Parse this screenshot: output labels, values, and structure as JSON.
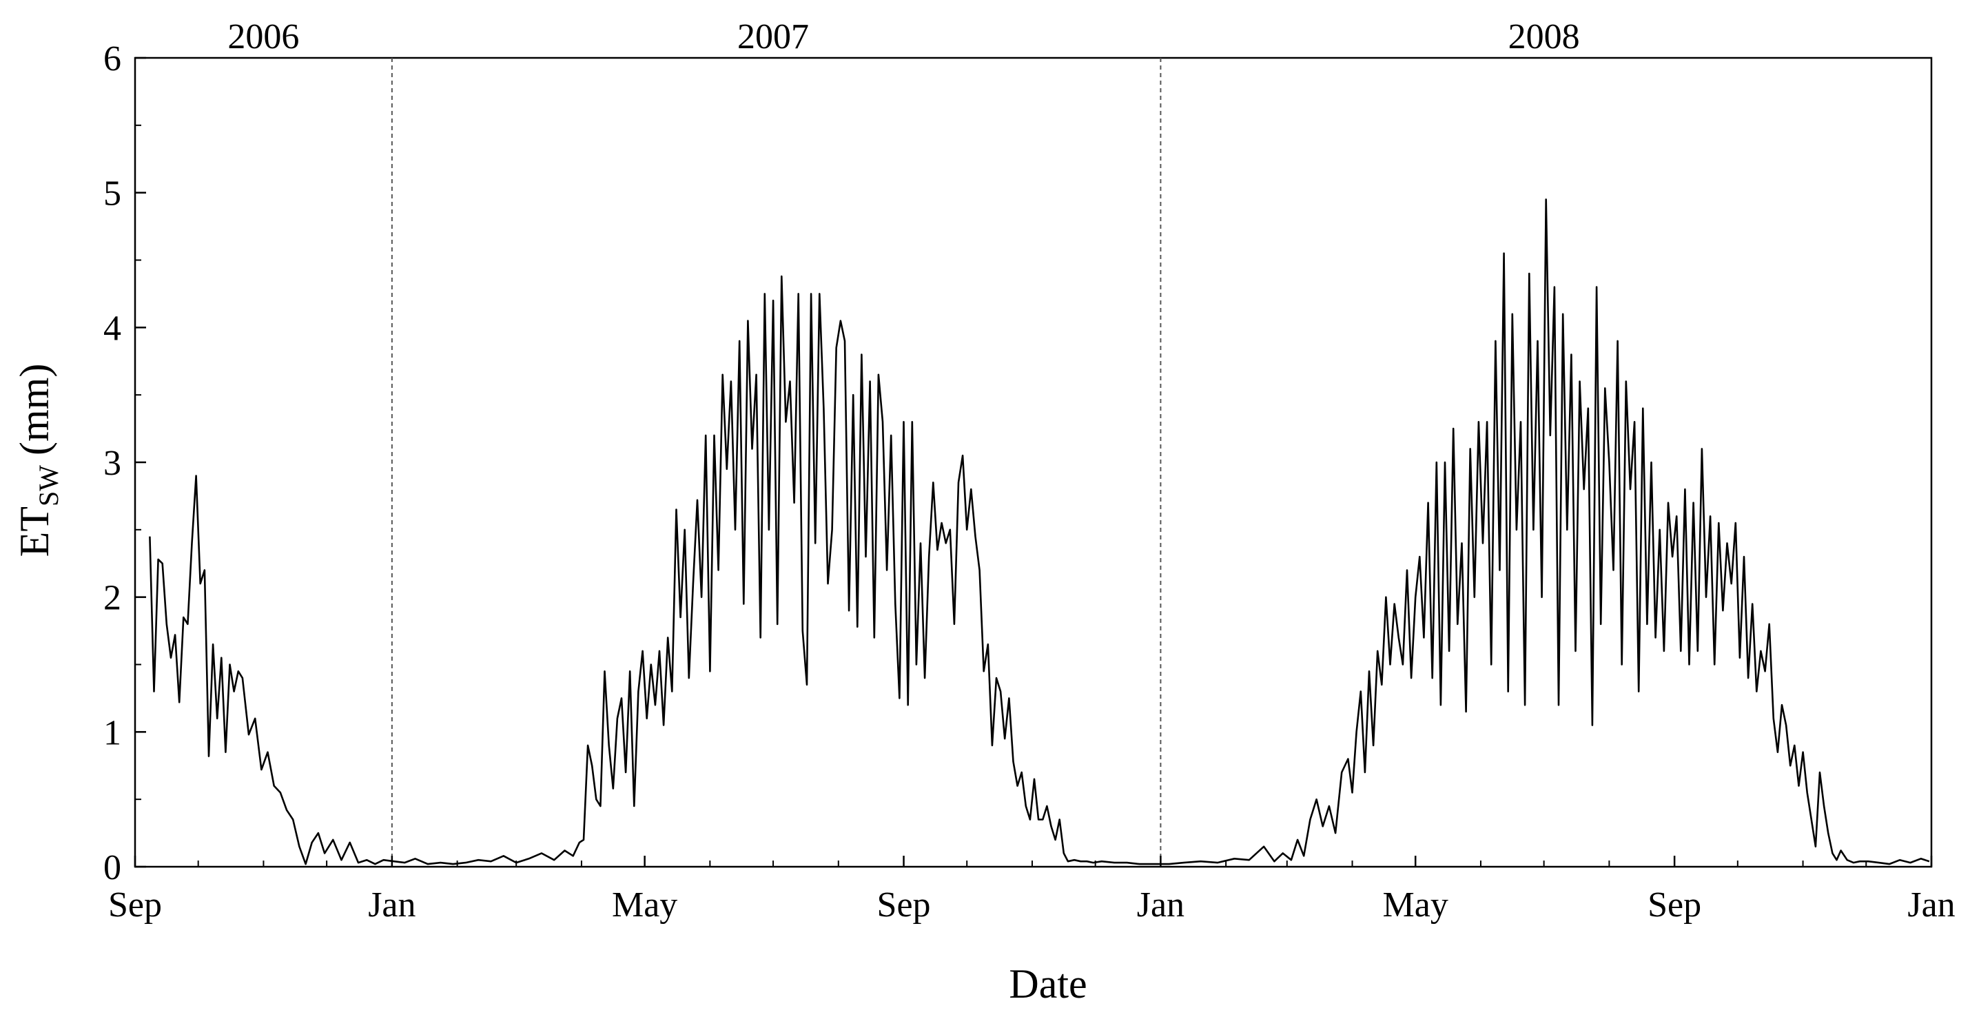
{
  "chart_data": {
    "type": "line",
    "title": "",
    "xlabel": "Date",
    "ylabel": {
      "main": "ET",
      "sub": "SW",
      "unit": "(mm)"
    },
    "ylim": [
      0,
      6
    ],
    "yticks": [
      0,
      1,
      2,
      3,
      4,
      5,
      6
    ],
    "xlim": [
      "2006-09-01",
      "2009-01-01"
    ],
    "xticks": [
      {
        "date": "2006-09-01",
        "label": "Sep"
      },
      {
        "date": "2007-01-01",
        "label": "Jan"
      },
      {
        "date": "2007-05-01",
        "label": "May"
      },
      {
        "date": "2007-09-01",
        "label": "Sep"
      },
      {
        "date": "2008-01-01",
        "label": "Jan"
      },
      {
        "date": "2008-05-01",
        "label": "May"
      },
      {
        "date": "2008-09-01",
        "label": "Sep"
      },
      {
        "date": "2009-01-01",
        "label": "Jan"
      }
    ],
    "year_labels": [
      {
        "label": "2006",
        "date": "2006-11-01"
      },
      {
        "label": "2007",
        "date": "2007-07-01"
      },
      {
        "label": "2008",
        "date": "2008-07-01"
      }
    ],
    "dividers": [
      "2007-01-01",
      "2008-01-01"
    ],
    "grid": false,
    "line_color": "#000000",
    "series": [
      {
        "x": [
          "2006-09-08",
          "2006-09-10",
          "2006-09-12",
          "2006-09-14",
          "2006-09-16",
          "2006-09-18",
          "2006-09-20",
          "2006-09-22",
          "2006-09-24",
          "2006-09-26",
          "2006-09-28",
          "2006-09-30",
          "2006-10-02",
          "2006-10-04",
          "2006-10-06",
          "2006-10-08",
          "2006-10-10",
          "2006-10-12",
          "2006-10-14",
          "2006-10-16",
          "2006-10-18",
          "2006-10-20",
          "2006-10-22",
          "2006-10-25",
          "2006-10-28",
          "2006-10-31",
          "2006-11-03",
          "2006-11-06",
          "2006-11-09",
          "2006-11-12",
          "2006-11-15",
          "2006-11-18",
          "2006-11-21",
          "2006-11-24",
          "2006-11-27",
          "2006-11-30",
          "2006-12-04",
          "2006-12-08",
          "2006-12-12",
          "2006-12-16",
          "2006-12-20",
          "2006-12-24",
          "2006-12-28",
          "2007-01-02",
          "2007-01-07",
          "2007-01-12",
          "2007-01-18",
          "2007-01-24",
          "2007-01-30",
          "2007-02-05",
          "2007-02-11",
          "2007-02-17",
          "2007-02-23",
          "2007-03-01",
          "2007-03-07",
          "2007-03-13",
          "2007-03-19",
          "2007-03-24",
          "2007-03-28",
          "2007-03-31",
          "2007-04-02",
          "2007-04-04",
          "2007-04-06",
          "2007-04-08",
          "2007-04-10",
          "2007-04-12",
          "2007-04-14",
          "2007-04-16",
          "2007-04-18",
          "2007-04-20",
          "2007-04-22",
          "2007-04-24",
          "2007-04-26",
          "2007-04-28",
          "2007-04-30",
          "2007-05-02",
          "2007-05-04",
          "2007-05-06",
          "2007-05-08",
          "2007-05-10",
          "2007-05-12",
          "2007-05-14",
          "2007-05-16",
          "2007-05-18",
          "2007-05-20",
          "2007-05-22",
          "2007-05-24",
          "2007-05-26",
          "2007-05-28",
          "2007-05-30",
          "2007-06-01",
          "2007-06-03",
          "2007-06-05",
          "2007-06-07",
          "2007-06-09",
          "2007-06-11",
          "2007-06-13",
          "2007-06-15",
          "2007-06-17",
          "2007-06-19",
          "2007-06-21",
          "2007-06-23",
          "2007-06-25",
          "2007-06-27",
          "2007-06-29",
          "2007-07-01",
          "2007-07-03",
          "2007-07-05",
          "2007-07-07",
          "2007-07-09",
          "2007-07-11",
          "2007-07-13",
          "2007-07-15",
          "2007-07-17",
          "2007-07-19",
          "2007-07-21",
          "2007-07-23",
          "2007-07-25",
          "2007-07-27",
          "2007-07-29",
          "2007-07-31",
          "2007-08-02",
          "2007-08-04",
          "2007-08-06",
          "2007-08-08",
          "2007-08-10",
          "2007-08-12",
          "2007-08-14",
          "2007-08-16",
          "2007-08-18",
          "2007-08-20",
          "2007-08-22",
          "2007-08-24",
          "2007-08-26",
          "2007-08-28",
          "2007-08-30",
          "2007-09-01",
          "2007-09-03",
          "2007-09-05",
          "2007-09-07",
          "2007-09-09",
          "2007-09-11",
          "2007-09-13",
          "2007-09-15",
          "2007-09-17",
          "2007-09-19",
          "2007-09-21",
          "2007-09-23",
          "2007-09-25",
          "2007-09-27",
          "2007-09-29",
          "2007-10-01",
          "2007-10-03",
          "2007-10-05",
          "2007-10-07",
          "2007-10-09",
          "2007-10-11",
          "2007-10-13",
          "2007-10-15",
          "2007-10-17",
          "2007-10-19",
          "2007-10-21",
          "2007-10-23",
          "2007-10-25",
          "2007-10-27",
          "2007-10-29",
          "2007-10-31",
          "2007-11-02",
          "2007-11-04",
          "2007-11-06",
          "2007-11-08",
          "2007-11-10",
          "2007-11-12",
          "2007-11-14",
          "2007-11-16",
          "2007-11-18",
          "2007-11-21",
          "2007-11-24",
          "2007-11-27",
          "2007-11-30",
          "2007-12-04",
          "2007-12-10",
          "2007-12-16",
          "2007-12-22",
          "2007-12-28",
          "2008-01-05",
          "2008-01-12",
          "2008-01-20",
          "2008-01-28",
          "2008-02-05",
          "2008-02-12",
          "2008-02-19",
          "2008-02-24",
          "2008-02-28",
          "2008-03-03",
          "2008-03-06",
          "2008-03-09",
          "2008-03-12",
          "2008-03-15",
          "2008-03-18",
          "2008-03-21",
          "2008-03-24",
          "2008-03-27",
          "2008-03-30",
          "2008-04-01",
          "2008-04-03",
          "2008-04-05",
          "2008-04-07",
          "2008-04-09",
          "2008-04-11",
          "2008-04-13",
          "2008-04-15",
          "2008-04-17",
          "2008-04-19",
          "2008-04-21",
          "2008-04-23",
          "2008-04-25",
          "2008-04-27",
          "2008-04-29",
          "2008-05-01",
          "2008-05-03",
          "2008-05-05",
          "2008-05-07",
          "2008-05-09",
          "2008-05-11",
          "2008-05-13",
          "2008-05-15",
          "2008-05-17",
          "2008-05-19",
          "2008-05-21",
          "2008-05-23",
          "2008-05-25",
          "2008-05-27",
          "2008-05-29",
          "2008-05-31",
          "2008-06-02",
          "2008-06-04",
          "2008-06-06",
          "2008-06-08",
          "2008-06-10",
          "2008-06-12",
          "2008-06-14",
          "2008-06-16",
          "2008-06-18",
          "2008-06-20",
          "2008-06-22",
          "2008-06-24",
          "2008-06-26",
          "2008-06-28",
          "2008-06-30",
          "2008-07-02",
          "2008-07-04",
          "2008-07-06",
          "2008-07-08",
          "2008-07-10",
          "2008-07-12",
          "2008-07-14",
          "2008-07-16",
          "2008-07-18",
          "2008-07-20",
          "2008-07-22",
          "2008-07-24",
          "2008-07-26",
          "2008-07-28",
          "2008-07-30",
          "2008-08-01",
          "2008-08-03",
          "2008-08-05",
          "2008-08-07",
          "2008-08-09",
          "2008-08-11",
          "2008-08-13",
          "2008-08-15",
          "2008-08-17",
          "2008-08-19",
          "2008-08-21",
          "2008-08-23",
          "2008-08-25",
          "2008-08-27",
          "2008-08-29",
          "2008-08-31",
          "2008-09-02",
          "2008-09-04",
          "2008-09-06",
          "2008-09-08",
          "2008-09-10",
          "2008-09-12",
          "2008-09-14",
          "2008-09-16",
          "2008-09-18",
          "2008-09-20",
          "2008-09-22",
          "2008-09-24",
          "2008-09-26",
          "2008-09-28",
          "2008-09-30",
          "2008-10-02",
          "2008-10-04",
          "2008-10-06",
          "2008-10-08",
          "2008-10-10",
          "2008-10-12",
          "2008-10-14",
          "2008-10-16",
          "2008-10-18",
          "2008-10-20",
          "2008-10-22",
          "2008-10-24",
          "2008-10-26",
          "2008-10-28",
          "2008-10-30",
          "2008-11-01",
          "2008-11-03",
          "2008-11-05",
          "2008-11-07",
          "2008-11-09",
          "2008-11-11",
          "2008-11-13",
          "2008-11-15",
          "2008-11-17",
          "2008-11-19",
          "2008-11-22",
          "2008-11-25",
          "2008-11-28",
          "2008-12-02",
          "2008-12-07",
          "2008-12-12",
          "2008-12-17",
          "2008-12-22",
          "2008-12-27",
          "2008-12-31"
        ],
        "y": [
          2.45,
          1.3,
          2.28,
          2.25,
          1.8,
          1.55,
          1.72,
          1.22,
          1.85,
          1.8,
          2.4,
          2.9,
          2.1,
          2.2,
          0.82,
          1.65,
          1.1,
          1.55,
          0.85,
          1.5,
          1.3,
          1.45,
          1.4,
          0.98,
          1.1,
          0.72,
          0.85,
          0.6,
          0.55,
          0.42,
          0.35,
          0.15,
          0.02,
          0.18,
          0.25,
          0.1,
          0.2,
          0.05,
          0.18,
          0.03,
          0.05,
          0.02,
          0.05,
          0.04,
          0.03,
          0.06,
          0.02,
          0.03,
          0.02,
          0.03,
          0.05,
          0.04,
          0.08,
          0.03,
          0.06,
          0.1,
          0.05,
          0.12,
          0.08,
          0.18,
          0.2,
          0.9,
          0.75,
          0.5,
          0.45,
          1.45,
          0.9,
          0.58,
          1.1,
          1.25,
          0.7,
          1.45,
          0.45,
          1.3,
          1.6,
          1.1,
          1.5,
          1.2,
          1.6,
          1.05,
          1.7,
          1.3,
          2.65,
          1.85,
          2.5,
          1.4,
          2.1,
          2.72,
          2.0,
          3.2,
          1.45,
          3.2,
          2.2,
          3.65,
          2.95,
          3.6,
          2.5,
          3.9,
          1.95,
          4.05,
          3.1,
          3.65,
          1.7,
          4.25,
          2.5,
          4.2,
          1.8,
          4.38,
          3.3,
          3.6,
          2.7,
          4.25,
          1.75,
          1.35,
          4.25,
          2.4,
          4.25,
          3.4,
          2.1,
          2.5,
          3.85,
          4.05,
          3.9,
          1.9,
          3.5,
          1.78,
          3.8,
          2.3,
          3.6,
          1.7,
          3.65,
          3.3,
          2.2,
          3.2,
          1.95,
          1.25,
          3.3,
          1.2,
          3.3,
          1.5,
          2.4,
          1.4,
          2.3,
          2.85,
          2.35,
          2.55,
          2.4,
          2.5,
          1.8,
          2.85,
          3.05,
          2.5,
          2.8,
          2.45,
          2.2,
          1.45,
          1.65,
          0.9,
          1.4,
          1.3,
          0.95,
          1.25,
          0.78,
          0.6,
          0.7,
          0.45,
          0.35,
          0.65,
          0.35,
          0.35,
          0.45,
          0.3,
          0.2,
          0.35,
          0.1,
          0.04,
          0.05,
          0.04,
          0.04,
          0.03,
          0.04,
          0.03,
          0.03,
          0.02,
          0.02,
          0.02,
          0.03,
          0.04,
          0.03,
          0.06,
          0.05,
          0.15,
          0.04,
          0.1,
          0.05,
          0.2,
          0.08,
          0.35,
          0.5,
          0.3,
          0.45,
          0.25,
          0.7,
          0.8,
          0.55,
          1.0,
          1.3,
          0.7,
          1.45,
          0.9,
          1.6,
          1.35,
          2.0,
          1.5,
          1.95,
          1.7,
          1.5,
          2.2,
          1.4,
          2.0,
          2.3,
          1.7,
          2.7,
          1.4,
          3.0,
          1.2,
          3.0,
          1.6,
          3.25,
          1.8,
          2.4,
          1.15,
          3.1,
          2.0,
          3.3,
          2.4,
          3.3,
          1.5,
          3.9,
          2.2,
          4.55,
          1.3,
          4.1,
          2.5,
          3.3,
          1.2,
          4.4,
          2.5,
          3.9,
          2.0,
          4.95,
          3.2,
          4.3,
          1.2,
          4.1,
          2.5,
          3.8,
          1.6,
          3.6,
          2.8,
          3.4,
          1.05,
          4.3,
          1.8,
          3.55,
          3.0,
          2.2,
          3.9,
          1.5,
          3.6,
          2.8,
          3.3,
          1.3,
          3.4,
          1.8,
          3.0,
          1.7,
          2.5,
          1.6,
          2.7,
          2.3,
          2.6,
          1.6,
          2.8,
          1.5,
          2.7,
          1.6,
          3.1,
          2.0,
          2.6,
          1.5,
          2.55,
          1.9,
          2.4,
          2.1,
          2.55,
          1.55,
          2.3,
          1.4,
          1.95,
          1.3,
          1.6,
          1.45,
          1.8,
          1.1,
          0.85,
          1.2,
          1.05,
          0.75,
          0.9,
          0.6,
          0.85,
          0.55,
          0.35,
          0.15,
          0.7,
          0.45,
          0.25,
          0.1,
          0.05,
          0.12,
          0.05,
          0.03,
          0.04,
          0.04,
          0.03,
          0.02,
          0.05,
          0.03,
          0.06,
          0.04
        ]
      }
    ]
  }
}
